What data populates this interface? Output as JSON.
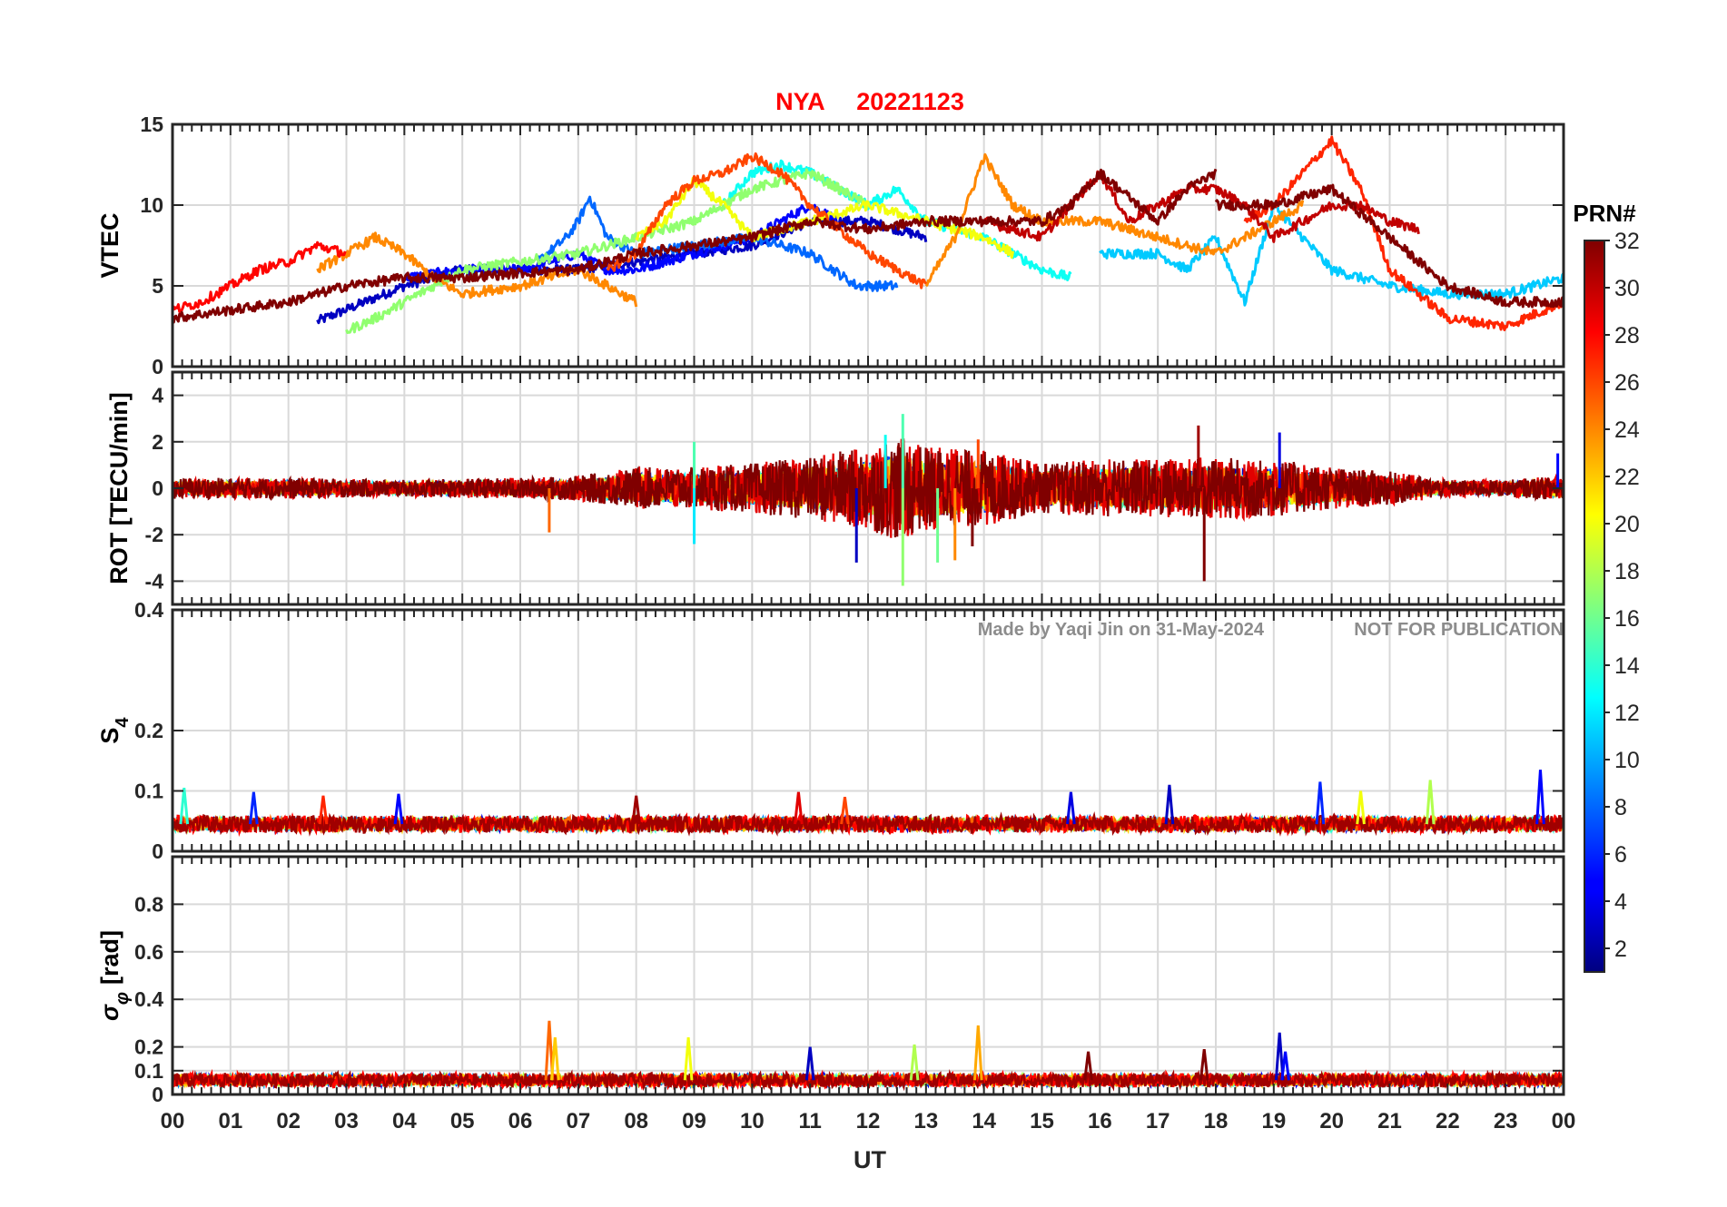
{
  "title": {
    "station": "NYA",
    "date": "20221123",
    "color": "#ff0000"
  },
  "watermark": {
    "credit": "Made by Yaqi Jin on 31-May-2024",
    "notice": "NOT FOR PUBLICATION",
    "color": "#8c8c8c"
  },
  "xaxis": {
    "label": "UT",
    "ticks": [
      "00",
      "01",
      "02",
      "03",
      "04",
      "05",
      "06",
      "07",
      "08",
      "09",
      "10",
      "11",
      "12",
      "13",
      "14",
      "15",
      "16",
      "17",
      "18",
      "19",
      "20",
      "21",
      "22",
      "23",
      "00"
    ]
  },
  "colorbar": {
    "label": "PRN#",
    "colormap": "jet",
    "range": [
      1,
      32
    ],
    "ticks": [
      "2",
      "4",
      "6",
      "8",
      "10",
      "12",
      "14",
      "16",
      "18",
      "20",
      "22",
      "24",
      "26",
      "28",
      "30",
      "32"
    ]
  },
  "chart_data": [
    {
      "type": "line",
      "panel": "vtec",
      "ylabel": "VTEC",
      "ylim": [
        0,
        15
      ],
      "yticks": [
        "0",
        "5",
        "10",
        "15"
      ],
      "x_unit": "UT hours",
      "grid": true,
      "series": [
        {
          "prn": 3,
          "x": [
            2.5,
            4,
            5,
            6,
            7,
            8,
            9,
            10,
            11,
            12,
            13
          ],
          "values": [
            2.8,
            5,
            6,
            6,
            6,
            6.5,
            7,
            7.5,
            9,
            9,
            8
          ]
        },
        {
          "prn": 5,
          "x": [
            4,
            5,
            6,
            6.5,
            7,
            7.5,
            8,
            9,
            10,
            11,
            11.5
          ],
          "values": [
            5.5,
            6,
            6,
            6.5,
            7,
            6,
            6,
            7,
            8,
            10,
            9
          ]
        },
        {
          "prn": 8,
          "x": [
            6.3,
            6.8,
            7,
            7.2,
            7.5,
            8,
            9,
            10,
            11,
            11.8,
            12.5
          ],
          "values": [
            6.5,
            8,
            9,
            10.5,
            8,
            7,
            7.5,
            8,
            7,
            5,
            5
          ]
        },
        {
          "prn": 11,
          "x": [
            16,
            17,
            17.5,
            18,
            18.5,
            19,
            19.5,
            20,
            21,
            22,
            23,
            24
          ],
          "values": [
            7,
            7,
            6,
            8,
            4,
            10,
            8,
            6,
            5,
            4.5,
            4.5,
            5.5
          ]
        },
        {
          "prn": 13,
          "x": [
            9.5,
            10,
            10.5,
            11,
            12,
            12.5,
            13,
            14,
            15,
            15.5
          ],
          "values": [
            10,
            12,
            12.5,
            12,
            10,
            11,
            9,
            8,
            6,
            5.5
          ]
        },
        {
          "prn": 17,
          "x": [
            3,
            3.5,
            4,
            4.5,
            5,
            6,
            7,
            8,
            9,
            10,
            11,
            12
          ],
          "values": [
            2.2,
            3,
            4,
            5,
            6,
            6.5,
            7,
            8,
            9,
            11,
            12,
            10
          ]
        },
        {
          "prn": 20,
          "x": [
            8,
            8.5,
            9,
            9.5,
            10,
            11,
            12,
            13,
            14,
            14.5
          ],
          "values": [
            8,
            9,
            11.5,
            10,
            8,
            9,
            10,
            9,
            8,
            7
          ]
        },
        {
          "prn": 24,
          "x": [
            2.5,
            3,
            3.5,
            4,
            4.5,
            5,
            6,
            7,
            8
          ],
          "values": [
            6,
            7,
            8,
            7,
            5.5,
            4.5,
            5,
            6,
            4
          ]
        },
        {
          "prn": 24,
          "x": [
            13,
            13.5,
            14,
            14.5,
            15,
            16,
            17,
            18,
            19,
            19.5
          ],
          "values": [
            5,
            8,
            13,
            10,
            9,
            9,
            8,
            7,
            9,
            10
          ]
        },
        {
          "prn": 26,
          "x": [
            7.5,
            8,
            8.5,
            9,
            9.5,
            10,
            10.5,
            11,
            12,
            12.5,
            13
          ],
          "values": [
            6,
            7,
            10,
            11.5,
            12,
            13,
            12,
            10,
            7,
            6,
            5
          ]
        },
        {
          "prn": 27,
          "x": [
            18.5,
            19,
            19.5,
            20,
            20.5,
            21,
            22,
            23,
            24
          ],
          "values": [
            9,
            10,
            12,
            14,
            11,
            6,
            3,
            2.5,
            4
          ]
        },
        {
          "prn": 28,
          "x": [
            0,
            0.5,
            1,
            1.5,
            2,
            2.5,
            3
          ],
          "values": [
            3.5,
            4,
            5,
            6,
            6.5,
            7.5,
            7
          ]
        },
        {
          "prn": 30,
          "x": [
            14,
            15,
            15.5,
            16,
            16.5,
            17,
            17.5,
            18,
            18.5,
            19,
            19.5,
            20,
            20.5,
            21,
            21.5
          ],
          "values": [
            9,
            8,
            10,
            12,
            9,
            10,
            11,
            11,
            10,
            8,
            9,
            10,
            10,
            9,
            8.5
          ]
        },
        {
          "prn": 32,
          "x": [
            0,
            1,
            2,
            3,
            4,
            5,
            6,
            7,
            8,
            9,
            10,
            11,
            12,
            13,
            14,
            15,
            15.5,
            16,
            17,
            17.5,
            18
          ],
          "values": [
            3,
            3.5,
            4,
            5,
            5.5,
            5.5,
            5.8,
            6,
            7,
            7.5,
            8,
            9,
            8.5,
            9,
            9,
            9,
            10,
            12,
            9,
            11,
            12
          ]
        },
        {
          "prn": 32,
          "x": [
            18,
            19,
            20,
            21,
            22,
            23,
            24
          ],
          "values": [
            10,
            10,
            11,
            8,
            5,
            4,
            4
          ]
        }
      ]
    },
    {
      "type": "line",
      "panel": "rot",
      "ylabel": "ROT [TECU/min]",
      "ylim": [
        -5,
        5
      ],
      "yticks": [
        "-4",
        "-2",
        "0",
        "2",
        "4"
      ],
      "x_unit": "UT hours",
      "grid": true,
      "noise_envelope": {
        "x": [
          0,
          2,
          4,
          6,
          7,
          8,
          9,
          10,
          11,
          12,
          12.5,
          13,
          14,
          15,
          16,
          17,
          18,
          19,
          20,
          21,
          22,
          23,
          24
        ],
        "amplitude": [
          0.5,
          0.5,
          0.4,
          0.5,
          0.6,
          1.0,
          1.0,
          1.2,
          1.5,
          2.0,
          2.5,
          2.0,
          1.8,
          1.2,
          1.4,
          1.4,
          1.5,
          1.4,
          1.0,
          0.8,
          0.4,
          0.4,
          0.6
        ]
      },
      "spikes": [
        {
          "x": 9.0,
          "value": -2.4,
          "prn": 12
        },
        {
          "x": 9.0,
          "value": 2.0,
          "prn": 15
        },
        {
          "x": 11.8,
          "value": -3.2,
          "prn": 3
        },
        {
          "x": 12.3,
          "value": 2.3,
          "prn": 13
        },
        {
          "x": 12.6,
          "value": -4.2,
          "prn": 17
        },
        {
          "x": 12.6,
          "value": 3.2,
          "prn": 15
        },
        {
          "x": 13.2,
          "value": -3.2,
          "prn": 16
        },
        {
          "x": 13.5,
          "value": -3.1,
          "prn": 24
        },
        {
          "x": 13.8,
          "value": -2.5,
          "prn": 32
        },
        {
          "x": 13.9,
          "value": 2.1,
          "prn": 26
        },
        {
          "x": 17.8,
          "value": -4.0,
          "prn": 32
        },
        {
          "x": 17.7,
          "value": 2.7,
          "prn": 31
        },
        {
          "x": 19.1,
          "value": 2.4,
          "prn": 4
        },
        {
          "x": 6.5,
          "value": -1.9,
          "prn": 25
        },
        {
          "x": 23.9,
          "value": 1.5,
          "prn": 5
        }
      ]
    },
    {
      "type": "line",
      "panel": "s4",
      "ylabel": "S4",
      "ylim": [
        0,
        0.4
      ],
      "yticks": [
        "0",
        "0.1",
        "0.2",
        "0.4"
      ],
      "x_unit": "UT hours",
      "grid": true,
      "baseline": 0.045,
      "noise": 0.012,
      "spikes": [
        {
          "x": 0.2,
          "value": 0.105,
          "prn": 14
        },
        {
          "x": 1.4,
          "value": 0.098,
          "prn": 6
        },
        {
          "x": 2.6,
          "value": 0.092,
          "prn": 27
        },
        {
          "x": 3.9,
          "value": 0.095,
          "prn": 5
        },
        {
          "x": 8.0,
          "value": 0.092,
          "prn": 31
        },
        {
          "x": 10.8,
          "value": 0.098,
          "prn": 29
        },
        {
          "x": 11.6,
          "value": 0.09,
          "prn": 26
        },
        {
          "x": 15.5,
          "value": 0.098,
          "prn": 4
        },
        {
          "x": 17.2,
          "value": 0.11,
          "prn": 3
        },
        {
          "x": 19.8,
          "value": 0.115,
          "prn": 6
        },
        {
          "x": 20.5,
          "value": 0.1,
          "prn": 20
        },
        {
          "x": 21.7,
          "value": 0.118,
          "prn": 18
        },
        {
          "x": 23.6,
          "value": 0.135,
          "prn": 5
        }
      ]
    },
    {
      "type": "line",
      "panel": "sigma_phi",
      "ylabel": "σ_φ [rad]",
      "ylim": [
        0,
        1
      ],
      "yticks": [
        "0",
        "0.1",
        "0.2",
        "0.4",
        "0.6",
        "0.8"
      ],
      "x_unit": "UT hours",
      "grid": true,
      "baseline": 0.06,
      "noise": 0.025,
      "spikes": [
        {
          "x": 6.5,
          "value": 0.31,
          "prn": 25
        },
        {
          "x": 6.6,
          "value": 0.24,
          "prn": 22
        },
        {
          "x": 8.9,
          "value": 0.24,
          "prn": 20
        },
        {
          "x": 11.0,
          "value": 0.2,
          "prn": 3
        },
        {
          "x": 12.8,
          "value": 0.21,
          "prn": 18
        },
        {
          "x": 13.9,
          "value": 0.29,
          "prn": 23
        },
        {
          "x": 15.8,
          "value": 0.18,
          "prn": 32
        },
        {
          "x": 17.8,
          "value": 0.19,
          "prn": 32
        },
        {
          "x": 19.1,
          "value": 0.26,
          "prn": 3
        },
        {
          "x": 19.2,
          "value": 0.18,
          "prn": 5
        }
      ]
    }
  ]
}
